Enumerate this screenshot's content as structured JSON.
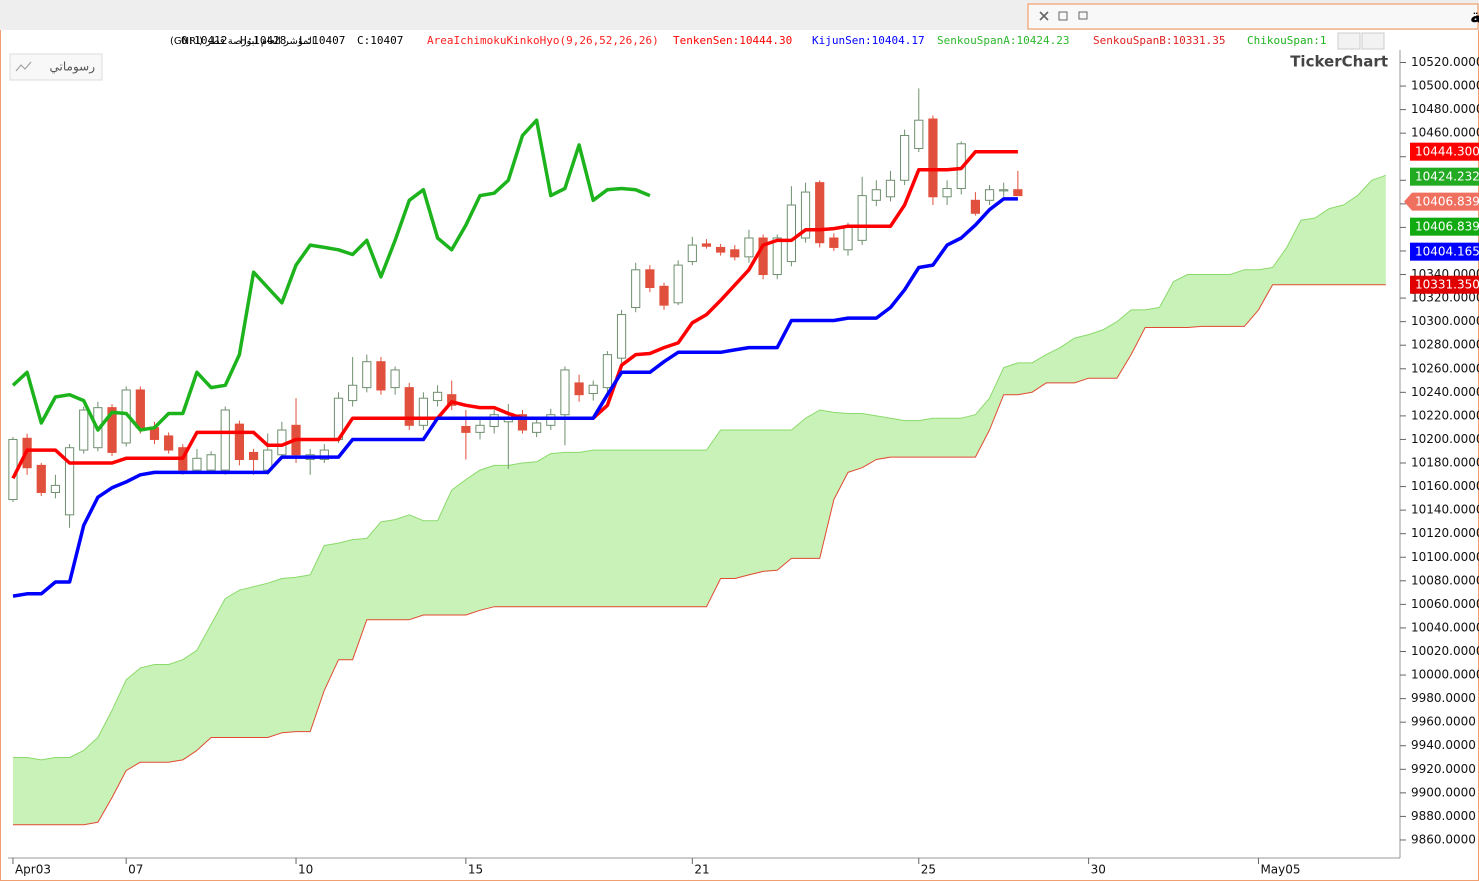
{
  "chart_data": {
    "type": "candlestick",
    "title": "المؤشر العام لبورصة قطر - ستون دقيقة",
    "symbol_label": "المؤشر العام لبورصة قطر (GNRI)",
    "ohlc_labels": [
      "O:10412",
      "H:10428",
      "L:10407",
      "C:10407"
    ],
    "indicator_label": "AreaIchimokuKinkoHyo(9,26,52,26,26)",
    "indicator_color": "#ff2020",
    "button_label": "رسوماتي",
    "logo": "TickerChart",
    "up_color": "#ffffff",
    "up_border": "#6f8f6f",
    "down_color": "#e0503c",
    "xlim": [
      -0.35,
      98
    ],
    "ylim": [
      9844.7,
      10530.6
    ],
    "xticks": [
      {
        "value": 0,
        "label": "Apr03"
      },
      {
        "value": 8,
        "label": "07"
      },
      {
        "value": 20,
        "label": "10"
      },
      {
        "value": 32,
        "label": "15"
      },
      {
        "value": 48,
        "label": "21"
      },
      {
        "value": 64,
        "label": "25"
      },
      {
        "value": 76,
        "label": "30"
      },
      {
        "value": 88,
        "label": "May05"
      }
    ],
    "yticks": [
      {
        "value": 10520,
        "label": "10520.0000"
      },
      {
        "value": 10500,
        "label": "10500.0000"
      },
      {
        "value": 10480,
        "label": "10480.0000"
      },
      {
        "value": 10460,
        "label": "10460.0000"
      },
      {
        "value": 10440,
        "label": "10440.0000"
      },
      {
        "value": 10420,
        "label": "10420.0000"
      },
      {
        "value": 10400,
        "label": "10400.0000"
      },
      {
        "value": 10380,
        "label": "10380.0000"
      },
      {
        "value": 10360,
        "label": "10360.0000"
      },
      {
        "value": 10340,
        "label": "10340.0000"
      },
      {
        "value": 10320,
        "label": "10320.0000"
      },
      {
        "value": 10300,
        "label": "10300.0000"
      },
      {
        "value": 10280,
        "label": "10280.0000"
      },
      {
        "value": 10260,
        "label": "10260.0000"
      },
      {
        "value": 10240,
        "label": "10240.0000"
      },
      {
        "value": 10220,
        "label": "10220.0000"
      },
      {
        "value": 10200,
        "label": "10200.0000"
      },
      {
        "value": 10180,
        "label": "10180.0000"
      },
      {
        "value": 10160,
        "label": "10160.0000"
      },
      {
        "value": 10140,
        "label": "10140.0000"
      },
      {
        "value": 10120,
        "label": "10120.0000"
      },
      {
        "value": 10100,
        "label": "10100.0000"
      },
      {
        "value": 10080,
        "label": "10080.0000"
      },
      {
        "value": 10060,
        "label": "10060.0000"
      },
      {
        "value": 10040,
        "label": "10040.0000"
      },
      {
        "value": 10020,
        "label": "10020.0000"
      },
      {
        "value": 10000,
        "label": "10000.0000"
      },
      {
        "value": 9980,
        "label": "9980.0000"
      },
      {
        "value": 9960,
        "label": "9960.0000"
      },
      {
        "value": 9940,
        "label": "9940.0000"
      },
      {
        "value": 9920,
        "label": "9920.0000"
      },
      {
        "value": 9900,
        "label": "9900.0000"
      },
      {
        "value": 9880,
        "label": "9880.0000"
      },
      {
        "value": 9860,
        "label": "9860.0000"
      }
    ],
    "open": [
      10149,
      10201,
      10178,
      10155,
      10136,
      10191,
      10193,
      10227,
      10197,
      10242,
      10210,
      10203,
      10193,
      10174,
      10174,
      10174,
      10213,
      10189,
      10174,
      10187,
      10212,
      10183,
      10183,
      10200,
      10233,
      10244,
      10266,
      10244,
      10244,
      10212,
      10233,
      10238,
      10211,
      10206,
      10211,
      10215,
      10221,
      10206,
      10212,
      10221,
      10248,
      10239,
      10244,
      10269,
      10312,
      10344,
      10330,
      10316,
      10351,
      10366,
      10363,
      10361,
      10355,
      10371,
      10340,
      10351,
      10371,
      10418,
      10371,
      10361,
      10369,
      10403,
      10406,
      10420,
      10447,
      10472,
      10406,
      10413,
      10403,
      10403,
      10411,
      10412
    ],
    "high": [
      10202,
      10205,
      10180,
      10170,
      10196,
      10228,
      10232,
      10230,
      10245,
      10245,
      10215,
      10206,
      10196,
      10192,
      10190,
      10228,
      10216,
      10192,
      10205,
      10215,
      10235,
      10192,
      10196,
      10240,
      10270,
      10272,
      10270,
      10262,
      10248,
      10240,
      10246,
      10250,
      10225,
      10218,
      10225,
      10230,
      10225,
      10218,
      10226,
      10262,
      10255,
      10250,
      10275,
      10310,
      10350,
      10348,
      10333,
      10352,
      10372,
      10370,
      10366,
      10365,
      10378,
      10374,
      10374,
      10415,
      10418,
      10420,
      10375,
      10384,
      10423,
      10420,
      10428,
      10463,
      10498,
      10475,
      10420,
      10453,
      10410,
      10416,
      10418,
      10428
    ],
    "low": [
      10147,
      10170,
      10152,
      10150,
      10125,
      10188,
      10190,
      10186,
      10194,
      10205,
      10196,
      10188,
      10170,
      10172,
      10171,
      10170,
      10178,
      10170,
      10170,
      10183,
      10180,
      10170,
      10180,
      10197,
      10228,
      10240,
      10238,
      10238,
      10208,
      10208,
      10228,
      10225,
      10183,
      10200,
      10205,
      10175,
      10205,
      10202,
      10208,
      10195,
      10232,
      10233,
      10240,
      10265,
      10308,
      10325,
      10310,
      10314,
      10348,
      10362,
      10356,
      10352,
      10350,
      10336,
      10336,
      10347,
      10367,
      10363,
      10360,
      10356,
      10365,
      10398,
      10402,
      10416,
      10444,
      10399,
      10399,
      10408,
      10390,
      10399,
      10406,
      10407
    ],
    "close": [
      10200,
      10176,
      10155,
      10161,
      10193,
      10225,
      10227,
      10189,
      10242,
      10210,
      10200,
      10191,
      10174,
      10184,
      10187,
      10225,
      10183,
      10183,
      10191,
      10208,
      10187,
      10187,
      10191,
      10235,
      10246,
      10266,
      10242,
      10259,
      10212,
      10235,
      10240,
      10229,
      10206,
      10212,
      10221,
      10219,
      10208,
      10214,
      10221,
      10259,
      10238,
      10246,
      10272,
      10306,
      10344,
      10329,
      10314,
      10348,
      10365,
      10364,
      10359,
      10355,
      10371,
      10340,
      10371,
      10399,
      10410,
      10367,
      10363,
      10380,
      10407,
      10412,
      10420,
      10458,
      10471,
      10406,
      10413,
      10451,
      10392,
      10412,
      10412,
      10407
    ],
    "series": [
      {
        "name": "SenkouSpanA:10424.23",
        "color": "#2db82d",
        "line_color": "#8ada6a",
        "width": 1,
        "fill": "#c9f2b9",
        "values": [
          9930,
          9930,
          9928,
          9930,
          9930,
          9936,
          9947,
          9970,
          9996,
          10006,
          10009,
          10009,
          10013,
          10021,
          10043,
          10065,
          10072,
          10075,
          10078,
          10082,
          10083,
          10085,
          10110,
          10112,
          10115,
          10116,
          10130,
          10132,
          10136,
          10131,
          10131,
          10157,
          10166,
          10174,
          10178,
          10178,
          10180,
          10181,
          10188,
          10189,
          10189,
          10191,
          10191,
          10191,
          10191,
          10191,
          10191,
          10191,
          10191,
          10191,
          10208,
          10208,
          10208,
          10208,
          10208,
          10208,
          10218,
          10225,
          10223,
          10222,
          10222,
          10220,
          10218,
          10216,
          10216,
          10218,
          10218,
          10218,
          10221,
          10235,
          10261,
          10265,
          10265,
          10272,
          10278,
          10286,
          10289,
          10293,
          10300,
          10310,
          10310,
          10312,
          10334,
          10340,
          10340,
          10340,
          10340,
          10344,
          10344,
          10346,
          10363,
          10386,
          10388,
          10396,
          10399,
          10407,
          10420,
          10424.23
        ]
      },
      {
        "name": "SenkouSpanB:10331.35",
        "color": "#e02020",
        "line_color": "#e04a30",
        "width": 1,
        "values": [
          9873,
          9873,
          9873,
          9873,
          9873,
          9873,
          9875,
          9896,
          9919,
          9926,
          9926,
          9926,
          9928,
          9936,
          9947,
          9947,
          9947,
          9947,
          9947,
          9951,
          9952,
          9952,
          9987,
          10013,
          10013,
          10047,
          10047,
          10047,
          10047,
          10051,
          10051,
          10051,
          10051,
          10055,
          10058,
          10058,
          10058,
          10058,
          10058,
          10058,
          10058,
          10058,
          10058,
          10058,
          10058,
          10058,
          10058,
          10058,
          10058,
          10058,
          10082,
          10082,
          10085,
          10088,
          10089,
          10099,
          10099,
          10099,
          10149,
          10172,
          10176,
          10183,
          10185,
          10185,
          10185,
          10185,
          10185,
          10185,
          10185,
          10208,
          10238,
          10238,
          10240,
          10248,
          10248,
          10248,
          10252,
          10252,
          10252,
          10272,
          10295,
          10295,
          10295,
          10295,
          10296,
          10296,
          10296,
          10296,
          10310,
          10331.35,
          10331.35,
          10331.35,
          10331.35,
          10331.35,
          10331.35,
          10331.35,
          10331.35,
          10331.35
        ]
      },
      {
        "name": "TenkenSen:10444.30",
        "color": "#ff0000",
        "line_color": "#ff0000",
        "width": 3.5,
        "values": [
          10167,
          10191,
          10191,
          10191,
          10180,
          10180,
          10180,
          10180,
          10184,
          10184,
          10184,
          10184,
          10184,
          10206,
          10206,
          10206,
          10206,
          10206,
          10195,
          10195,
          10200,
          10200,
          10200,
          10200,
          10218,
          10218,
          10218,
          10218,
          10218,
          10218,
          10218,
          10232,
          10229,
          10227,
          10227,
          10222,
          10218,
          10218,
          10218,
          10218,
          10218,
          10218,
          10229,
          10263,
          10272,
          10273,
          10278,
          10282,
          10299,
          10306,
          10318,
          10331,
          10344,
          10365,
          10369,
          10369,
          10378,
          10378,
          10379,
          10381,
          10381,
          10381,
          10381,
          10399,
          10429,
          10429,
          10429,
          10430,
          10444.3,
          10444.3,
          10444.3,
          10444.3
        ]
      },
      {
        "name": "KijunSen:10404.17",
        "color": "#0000ff",
        "line_color": "#0000ff",
        "width": 3.5,
        "values": [
          10067,
          10069,
          10069,
          10079,
          10079,
          10127,
          10151,
          10159,
          10164,
          10170,
          10172,
          10172,
          10172,
          10172,
          10172,
          10172,
          10172,
          10172,
          10172,
          10185,
          10185,
          10185,
          10185,
          10185,
          10200,
          10200,
          10200,
          10200,
          10200,
          10200,
          10218,
          10218,
          10218,
          10218,
          10218,
          10218,
          10218,
          10218,
          10218,
          10218,
          10218,
          10218,
          10238,
          10257,
          10257,
          10257,
          10266,
          10274,
          10274,
          10274,
          10274,
          10276,
          10278,
          10278,
          10278,
          10301,
          10301,
          10301,
          10301,
          10303,
          10303,
          10303,
          10312,
          10327,
          10346,
          10348,
          10365,
          10371,
          10382,
          10395,
          10404.17,
          10404.17
        ]
      },
      {
        "name": "ChikouSpan:1",
        "color": "#1db31d",
        "line_color": "#1db31d",
        "width": 3.5,
        "values": [
          10246,
          10257,
          10214,
          10236,
          10238,
          10233,
          10208,
          10223,
          10222,
          10208,
          10210,
          10222,
          10222,
          10257,
          10244,
          10246,
          10272,
          10342,
          10329,
          10316,
          10348,
          10365,
          10363,
          10361,
          10357,
          10369,
          10338,
          10369,
          10403,
          10412,
          10371,
          10361,
          10382,
          10407,
          10409,
          10420,
          10458,
          10471,
          10407,
          10413,
          10450,
          10403,
          10412,
          10413,
          10412,
          10407
        ]
      }
    ],
    "price_tags": [
      {
        "value": 10444.3,
        "label": "10444.300",
        "color": "#ff0000"
      },
      {
        "value": 10424.232,
        "label": "10424.232",
        "color": "#22aa22"
      },
      {
        "value": 10406.839,
        "label": "10406.839",
        "color": "#f07060",
        "arrow": true
      },
      {
        "value": 10406.839,
        "label": "10406.839",
        "color": "#11aa11"
      },
      {
        "value": 10404.165,
        "label": "10404.165",
        "color": "#0000ff"
      },
      {
        "value": 10331.35,
        "label": "10331.350",
        "color": "#e00000"
      }
    ]
  }
}
